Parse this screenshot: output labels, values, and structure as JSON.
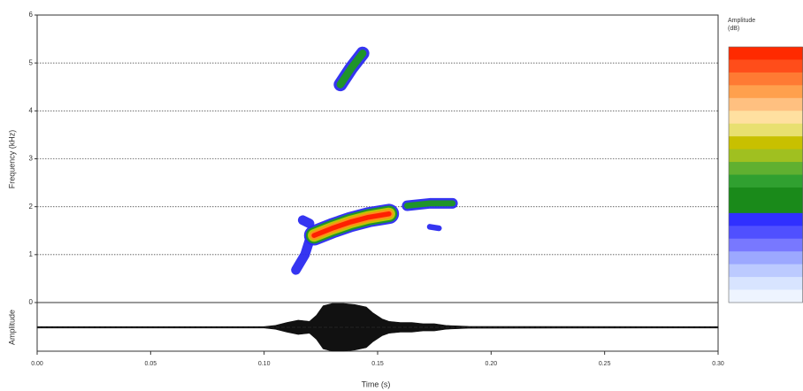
{
  "chart_data": {
    "type": "spectrogram",
    "x_label": "Time (s)",
    "y_label": "Frequency (kHz)",
    "osc_label": "Amplitude",
    "legend_title": [
      "Amplitude",
      "(dB)"
    ],
    "xlim": [
      0,
      0.3
    ],
    "xticks": [
      {
        "value": 0,
        "label": "0.00"
      },
      {
        "value": 0.05,
        "label": "0.05"
      },
      {
        "value": 0.1,
        "label": "0.10"
      },
      {
        "value": 0.15,
        "label": "0.15"
      },
      {
        "value": 0.2,
        "label": "0.20"
      },
      {
        "value": 0.25,
        "label": "0.25"
      },
      {
        "value": 0.3,
        "label": "0.30"
      }
    ],
    "ylim": [
      0,
      6
    ],
    "yticks": [
      0,
      1,
      2,
      3,
      4,
      5,
      6
    ],
    "grid": true,
    "palette": [
      "#2a2af0",
      "#1f9a1f",
      "#c8c800",
      "#ff8c1a",
      "#ff1a00"
    ],
    "contours": [
      {
        "t": [
          0.1336,
          0.1385,
          0.1434
        ],
        "f": [
          4.55,
          4.9,
          5.2
        ],
        "bandwidth": 0.28,
        "peak": 1
      },
      {
        "t": [
          0.114,
          0.118,
          0.121
        ],
        "f": [
          0.68,
          1.0,
          1.45
        ],
        "bandwidth": 0.2,
        "peak": 0
      },
      {
        "t": [
          0.117,
          0.12
        ],
        "f": [
          1.72,
          1.65
        ],
        "bandwidth": 0.2,
        "peak": 0
      },
      {
        "t": [
          0.122,
          0.13,
          0.138,
          0.146,
          0.155
        ],
        "f": [
          1.4,
          1.55,
          1.68,
          1.78,
          1.85
        ],
        "bandwidth": 0.42,
        "peak": 4
      },
      {
        "t": [
          0.163,
          0.173,
          0.183
        ],
        "f": [
          2.02,
          2.07,
          2.07
        ],
        "bandwidth": 0.22,
        "peak": 1
      },
      {
        "t": [
          0.173,
          0.177
        ],
        "f": [
          1.58,
          1.55
        ],
        "bandwidth": 0.12,
        "peak": 0
      }
    ],
    "colormap": [
      "#ff2a00",
      "#ff4d1a",
      "#ff7a33",
      "#ffa04d",
      "#ffc080",
      "#ffe0a0",
      "#e8e070",
      "#c8c000",
      "#a0c020",
      "#60b030",
      "#30a030",
      "#1a8a1a",
      "#1a8a1a",
      "#3030ff",
      "#5050ff",
      "#7878ff",
      "#9ca8ff",
      "#bccaff",
      "#d8e4ff",
      "#eef4ff"
    ],
    "osc_lim": [
      -1,
      1
    ],
    "envelope": {
      "t": [
        0,
        0.1,
        0.105,
        0.11,
        0.115,
        0.12,
        0.123,
        0.126,
        0.13,
        0.135,
        0.14,
        0.145,
        0.148,
        0.152,
        0.155,
        0.16,
        0.165,
        0.17,
        0.175,
        0.18,
        0.19,
        0.3
      ],
      "values": [
        0.03,
        0.03,
        0.08,
        0.2,
        0.3,
        0.25,
        0.5,
        0.9,
        1.0,
        1.0,
        0.95,
        0.85,
        0.6,
        0.35,
        0.25,
        0.2,
        0.2,
        0.15,
        0.15,
        0.08,
        0.04,
        0.03
      ]
    }
  }
}
